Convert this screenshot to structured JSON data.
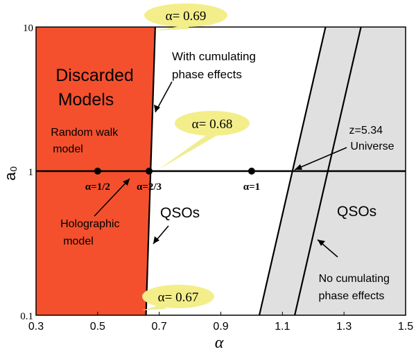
{
  "chart_data": {
    "type": "region-plot",
    "xlabel": "α",
    "ylabel": "a₀",
    "xlim": [
      0.3,
      1.5
    ],
    "ylim": [
      0.1,
      10
    ],
    "yscale": "log",
    "x_ticks": [
      {
        "value": 0.3,
        "label": "0.3"
      },
      {
        "value": 0.5,
        "label": "0.5"
      },
      {
        "value": 0.7,
        "label": "0.7"
      },
      {
        "value": 0.9,
        "label": "0.9"
      },
      {
        "value": 1.1,
        "label": "1.1"
      },
      {
        "value": 1.3,
        "label": "1.3"
      },
      {
        "value": 1.5,
        "label": "1.5"
      }
    ],
    "y_ticks": [
      {
        "value": 10,
        "label": "10"
      },
      {
        "value": 1,
        "label": "1"
      },
      {
        "value": 0.1,
        "label": "0.1"
      }
    ],
    "regions": [
      {
        "name": "discarded",
        "color": "#f4502e",
        "x_at_ymin": 0.3,
        "x_at_ymax": 0.3,
        "x_right_at_ymin": 0.657,
        "x_right_at_ymax": 0.687
      },
      {
        "name": "no-cumulating",
        "color": "#e0e0e0",
        "x_left_at_ymin": 1.025,
        "x_left_at_ymax": 1.24
      }
    ],
    "boundary_lines": [
      {
        "name": "with-cumulating-boundary",
        "x_at_ymin": 0.657,
        "x_at_ymax": 0.687
      },
      {
        "name": "no-cumulating-left",
        "x_at_ymin": 1.025,
        "x_at_ymax": 1.24
      },
      {
        "name": "no-cumulating-right",
        "x_at_ymin": 1.14,
        "x_at_ymax": 1.355
      }
    ],
    "horizontal_line": {
      "y": 1
    },
    "points": [
      {
        "x": 0.5,
        "y": 1,
        "label": "α=1/2"
      },
      {
        "x": 0.667,
        "y": 1,
        "label": "α=2/3"
      },
      {
        "x": 1.0,
        "y": 1,
        "label": "α=1"
      }
    ],
    "bubbles": [
      {
        "label": "α= 0.69",
        "x": 0.74,
        "y": 10
      },
      {
        "label": "α= 0.68",
        "x": 0.77,
        "y": 3.0
      },
      {
        "label": "α= 0.67",
        "x": 0.73,
        "y": 0.12
      }
    ],
    "texts": {
      "discarded_line1": "Discarded",
      "discarded_line2": "Models",
      "random_line1": "Random walk",
      "random_line2": "model",
      "holo_line1": "Holographic",
      "holo_line2": "model",
      "with_line1": "With cumulating",
      "with_line2": "phase effects",
      "qsos_left": "QSOs",
      "qsos_right": "QSOs",
      "z_line1": "z=5.34",
      "z_line2": "Universe",
      "no_line1": "No cumulating",
      "no_line2": "phase effects"
    },
    "colors": {
      "discarded": "#f4502e",
      "gray_region": "#e0e0e0",
      "bubble": "#f3ee8a",
      "bubble_arrow": "#f0ed90"
    }
  }
}
